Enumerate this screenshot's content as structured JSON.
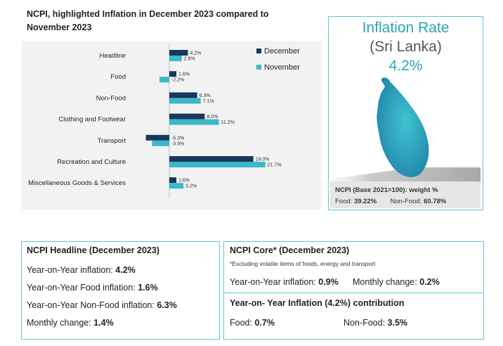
{
  "chart_data": {
    "type": "bar",
    "orientation": "horizontal",
    "title": "NCPI, highlighted Inflation in December 2023 compared to November 2023",
    "categories": [
      "Headline",
      "Food",
      "Non-Food",
      "Clothing and Footwear",
      "Transport",
      "Recreation and Culture",
      "Miscellaneous Goods & Services"
    ],
    "series": [
      {
        "name": "December",
        "color": "#17375e",
        "values": [
          4.2,
          1.6,
          6.3,
          8.0,
          -5.3,
          19.0,
          1.6
        ],
        "labels": [
          "4.2%",
          "1.6%",
          "6.3%",
          "8.0%",
          "-5.3%",
          "19.0%",
          "1.6%"
        ]
      },
      {
        "name": "November",
        "color": "#3cb8c8",
        "values": [
          2.8,
          -2.2,
          7.1,
          11.2,
          -3.9,
          21.7,
          3.2
        ],
        "labels": [
          "2.8%",
          "-2.2%",
          "7.1%",
          "11.2%",
          "-3.9%",
          "21.7%",
          "3.2%"
        ]
      }
    ],
    "legend_position": "top-right",
    "grid": false
  },
  "header": {
    "line1": "NCPI, highlighted Inflation in December 2023 compared to",
    "line2": "November 2023"
  },
  "rate_panel": {
    "title": "Inflation Rate",
    "country": "(Sri Lanka)",
    "value": "4.2%",
    "map_label": "Sri Lanka map",
    "base_label": "NCPI (Base 2021=100): weight %",
    "food_label": "Food:",
    "food_weight": "39.22%",
    "nonfood_label": "Non-Food:",
    "nonfood_weight": "60.78%"
  },
  "headline_box": {
    "title": "NCPI Headline (December 2023)",
    "items": [
      {
        "label": "Year-on-Year inflation:",
        "value": "4.2%"
      },
      {
        "label": "Year-on-Year Food inflation:",
        "value": "1.6%"
      },
      {
        "label": "Year-on-Year Non-Food inflation:",
        "value": "6.3%"
      },
      {
        "label": "Monthly change:",
        "value": "1.4%"
      }
    ]
  },
  "core_box": {
    "title": "NCPI Core* (December 2023)",
    "note": "*Excluding volatile items of foods, energy and transport",
    "yoy_label": "Year-on-Year inflation:",
    "yoy_value": "0.9%",
    "monthly_label": "Monthly change:",
    "monthly_value": "0.2%"
  },
  "contribution_box": {
    "title": "Year-on- Year Inflation (4.2%) contribution",
    "food_label": "Food:",
    "food_value": "0.7%",
    "nonfood_label": "Non-Food:",
    "nonfood_value": "3.5%"
  },
  "colors": {
    "december": "#17375e",
    "november": "#3cb8c8",
    "accent": "#2aa5b4",
    "border": "#5fc7d3"
  }
}
